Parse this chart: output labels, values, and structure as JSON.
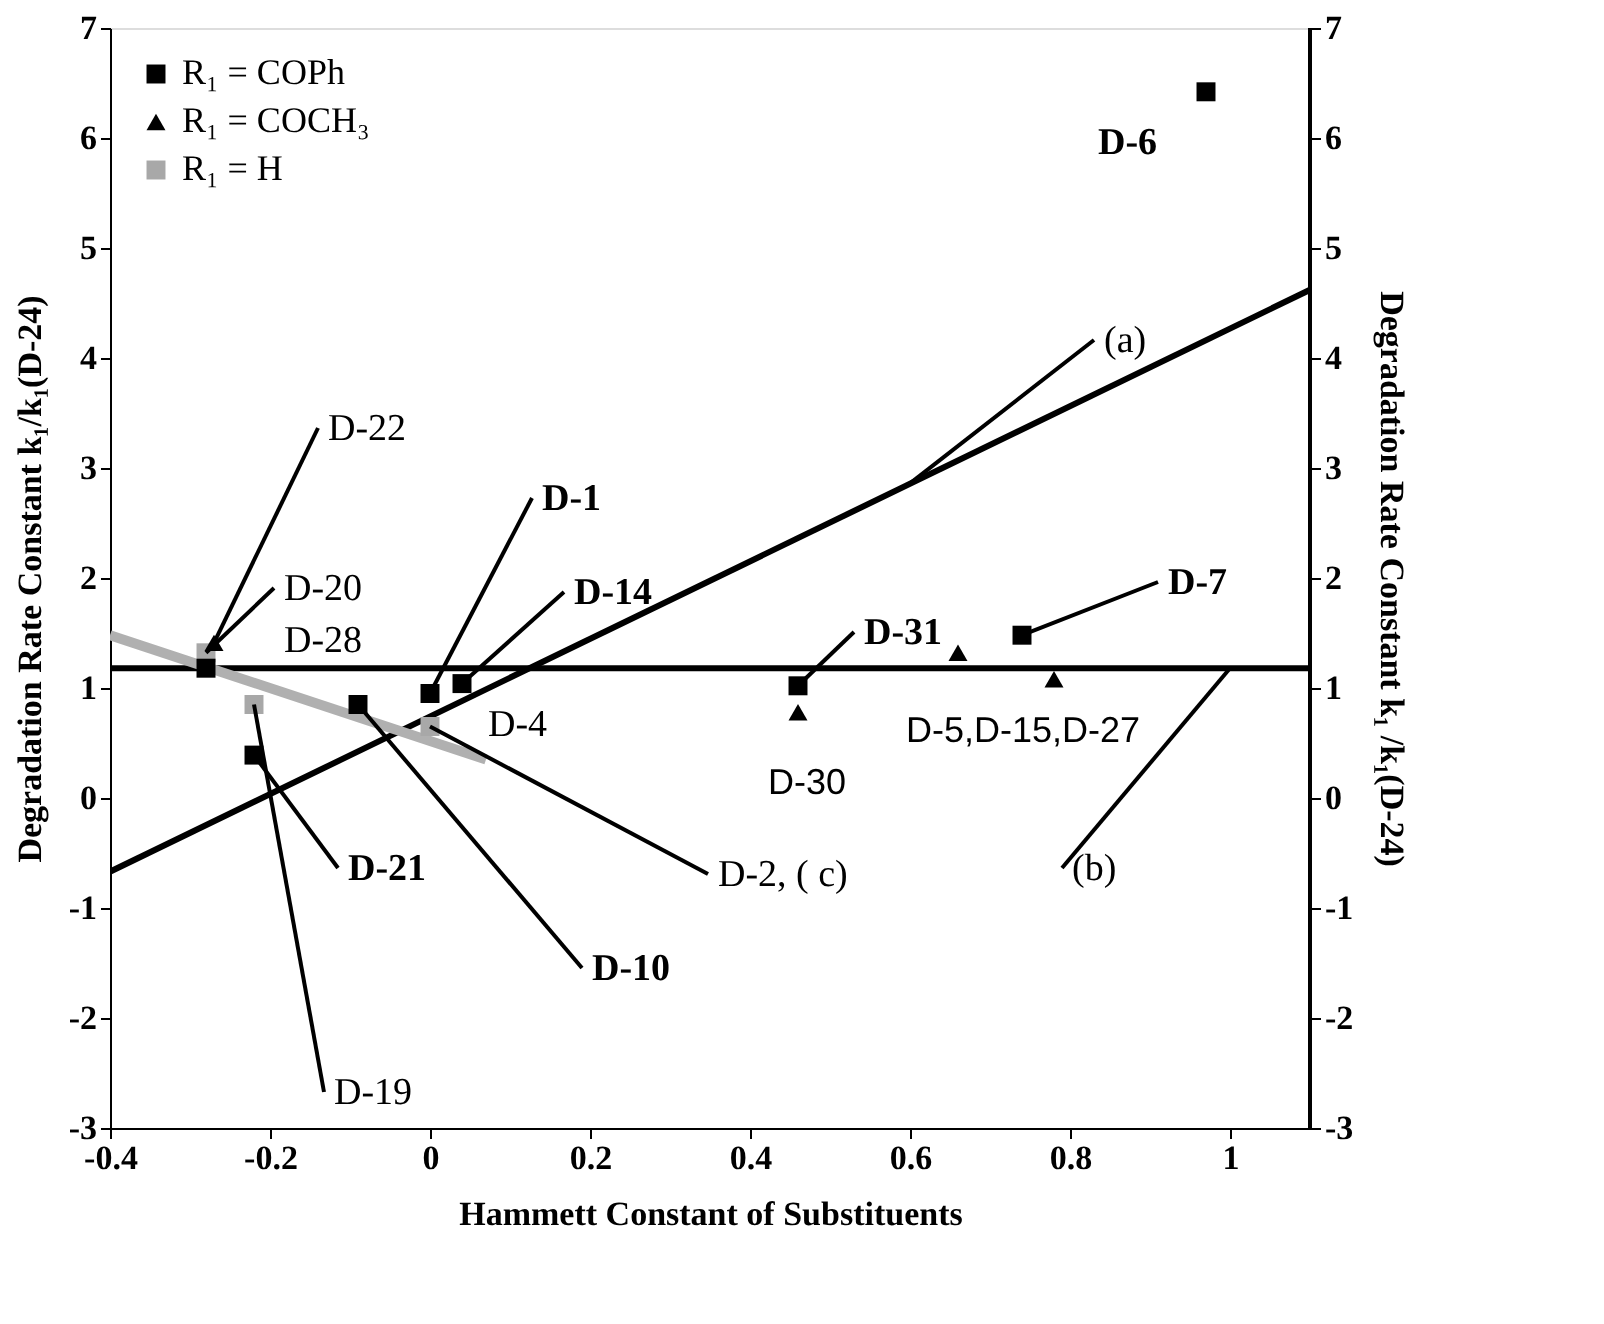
{
  "chart_data": {
    "type": "scatter",
    "xlabel": "Hammett Constant of Substituents",
    "ylabel": "Degradation Rate Constant    k₁/k₁(D-24)",
    "y2label": "Degradation Rate Constant k₁ /k₁(D-24)",
    "xlim": [
      -0.4,
      1.1
    ],
    "xticks": [
      -0.4,
      -0.2,
      0,
      0.2,
      0.4,
      0.6,
      0.8,
      1
    ],
    "ylim": [
      -3,
      7
    ],
    "yticks": [
      -3,
      -2,
      -1,
      0,
      1,
      2,
      3,
      4,
      5,
      6,
      7
    ],
    "y2lim": [
      -3,
      7
    ],
    "y2ticks": [
      -3,
      -2,
      -1,
      0,
      1,
      2,
      3,
      4,
      5,
      6,
      7
    ],
    "grid": false,
    "legend": "top left",
    "series": [
      {
        "name": "R₁ = COPh",
        "marker": "square",
        "color": "#000000",
        "x": [
          -0.28,
          -0.22,
          -0.09,
          0,
          0.04,
          0.46,
          0.74,
          0.97
        ],
        "values": [
          1.18,
          0.39,
          0.85,
          0.95,
          1.04,
          1.02,
          1.48,
          6.42
        ]
      },
      {
        "name": "R₁ = COCH₃",
        "marker": "triangle",
        "color": "#000000",
        "x": [
          -0.27,
          0.46,
          0.66,
          0.78
        ],
        "values": [
          1.41,
          0.78,
          1.32,
          1.08
        ]
      },
      {
        "name": "R₁ = H",
        "marker": "square",
        "color": "#a8a8a8",
        "x": [
          -0.28,
          -0.22,
          0
        ],
        "values": [
          1.32,
          0.85,
          0.65
        ]
      },
      {
        "type": "line",
        "color": "#000000",
        "x": [
          -0.4,
          1.1
        ],
        "values": [
          -0.67,
          4.62
        ]
      },
      {
        "type": "line",
        "color": "#000000",
        "x": [
          -0.4,
          1.1
        ],
        "values": [
          1.18,
          1.18
        ]
      },
      {
        "type": "line",
        "color": "#b0b0b0",
        "x": [
          -0.4,
          0.07
        ],
        "values": [
          1.48,
          0.35
        ]
      }
    ],
    "annotations": [
      {
        "text": "D-22",
        "x": -0.27,
        "y": 1.41
      },
      {
        "text": "D-20",
        "x": -0.28,
        "y": 1.32
      },
      {
        "text": "D-28",
        "x": -0.28,
        "y": 1.18
      },
      {
        "text": "D-1",
        "x": 0,
        "y": 0.95
      },
      {
        "text": "D-14",
        "x": 0.04,
        "y": 1.04
      },
      {
        "text": "D-4",
        "x": 0.04,
        "y": 1.04
      },
      {
        "text": "D-21",
        "x": -0.22,
        "y": 0.39
      },
      {
        "text": "D-10",
        "x": -0.09,
        "y": 0.85
      },
      {
        "text": "D-2, ( c)",
        "x": 0,
        "y": 0.65
      },
      {
        "text": "D-19",
        "x": -0.22,
        "y": 0.85
      },
      {
        "text": "D-30",
        "x": 0.46,
        "y": 0.78
      },
      {
        "text": "D-31",
        "x": 0.46,
        "y": 1.02
      },
      {
        "text": "D-5,D-15,D-27",
        "x": 0.78,
        "y": 1.08
      },
      {
        "text": "D-7",
        "x": 0.74,
        "y": 1.48
      },
      {
        "text": "D-6",
        "x": 0.97,
        "y": 6.42
      },
      {
        "text": "(a)",
        "x": 0.6,
        "y": 2.86
      },
      {
        "text": "(b)",
        "x": 1.0,
        "y": 1.18
      }
    ]
  }
}
